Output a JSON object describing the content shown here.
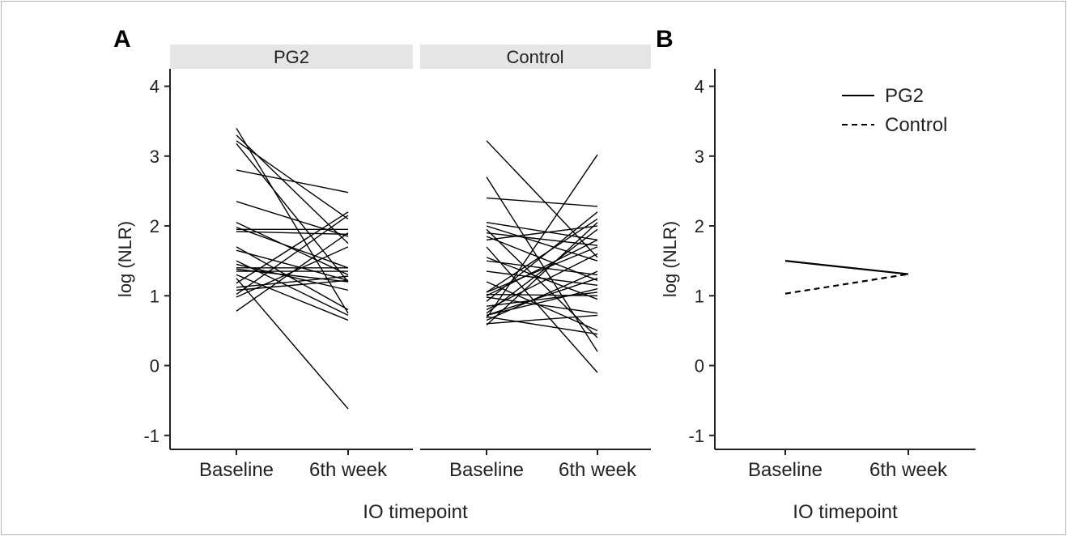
{
  "figure": {
    "panel_a_label": "A",
    "panel_b_label": "B"
  },
  "chart_data": [
    {
      "type": "line",
      "panel": "A",
      "facet_labels": [
        "PG2",
        "Control"
      ],
      "categories": [
        "Baseline",
        "6th week"
      ],
      "xlabel": "IO timepoint",
      "ylabel": "log (NLR)",
      "ylim": [
        -1.2,
        4.25
      ],
      "yticks": [
        -1,
        0,
        1,
        2,
        3,
        4
      ],
      "grid": false,
      "facets": [
        {
          "name": "PG2",
          "pairs": [
            [
              3.4,
              0.75
            ],
            [
              3.3,
              1.75
            ],
            [
              3.22,
              2.1
            ],
            [
              3.18,
              1.2
            ],
            [
              2.8,
              2.48
            ],
            [
              2.35,
              1.85
            ],
            [
              2.05,
              1.3
            ],
            [
              1.98,
              1.4
            ],
            [
              1.95,
              1.95
            ],
            [
              1.92,
              1.88
            ],
            [
              1.7,
              0.8
            ],
            [
              1.65,
              1.22
            ],
            [
              1.5,
              0.72
            ],
            [
              1.45,
              1.08
            ],
            [
              1.4,
              1.4
            ],
            [
              1.38,
              1.2
            ],
            [
              1.35,
              1.35
            ],
            [
              1.3,
              0.65
            ],
            [
              1.25,
              -0.62
            ],
            [
              1.18,
              2.2
            ],
            [
              1.12,
              1.28
            ],
            [
              1.08,
              1.22
            ],
            [
              1.02,
              2.15
            ],
            [
              0.98,
              1.7
            ],
            [
              0.78,
              1.9
            ]
          ]
        },
        {
          "name": "Control",
          "pairs": [
            [
              3.22,
              1.55
            ],
            [
              2.7,
              0.2
            ],
            [
              2.4,
              2.28
            ],
            [
              2.05,
              1.8
            ],
            [
              2.0,
              1.5
            ],
            [
              1.95,
              0.4
            ],
            [
              1.9,
              1.72
            ],
            [
              1.85,
              1.22
            ],
            [
              1.8,
              2.0
            ],
            [
              1.7,
              -0.1
            ],
            [
              1.55,
              0.95
            ],
            [
              1.5,
              1.3
            ],
            [
              1.35,
              1.15
            ],
            [
              1.2,
              0.5
            ],
            [
              1.05,
              2.1
            ],
            [
              1.02,
              1.0
            ],
            [
              1.0,
              1.8
            ],
            [
              0.98,
              0.75
            ],
            [
              0.92,
              2.2
            ],
            [
              0.85,
              1.05
            ],
            [
              0.8,
              1.6
            ],
            [
              0.75,
              1.95
            ],
            [
              0.72,
              1.25
            ],
            [
              0.7,
              0.45
            ],
            [
              0.68,
              3.02
            ],
            [
              0.65,
              1.35
            ],
            [
              0.6,
              0.72
            ],
            [
              0.58,
              2.05
            ],
            [
              0.72,
              1.1
            ],
            [
              1.05,
              1.7
            ]
          ]
        }
      ]
    },
    {
      "type": "line",
      "panel": "B",
      "categories": [
        "Baseline",
        "6th week"
      ],
      "xlabel": "IO timepoint",
      "ylabel": "log (NLR)",
      "ylim": [
        -1.2,
        4.25
      ],
      "yticks": [
        -1,
        0,
        1,
        2,
        3,
        4
      ],
      "grid": false,
      "legend_position": "top-right",
      "series": [
        {
          "name": "PG2",
          "values": [
            1.5,
            1.31
          ],
          "linestyle": "solid"
        },
        {
          "name": "Control",
          "values": [
            1.03,
            1.31
          ],
          "linestyle": "dashed"
        }
      ]
    }
  ]
}
